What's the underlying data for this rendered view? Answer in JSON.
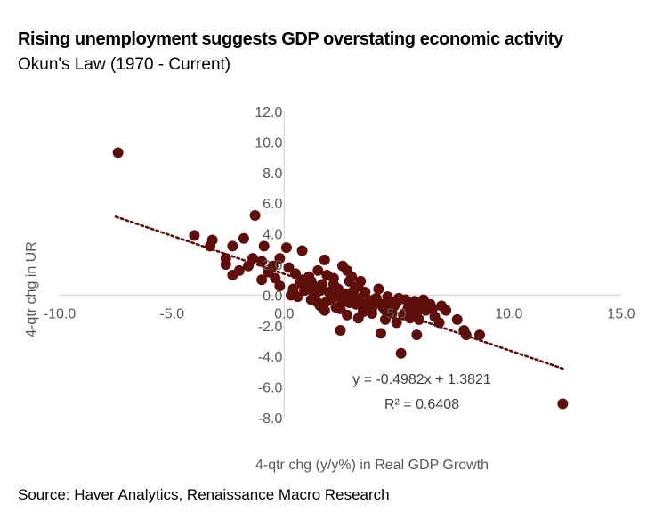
{
  "title": "Rising unemployment suggests GDP overstating economic activity",
  "subtitle": "Okun's Law (1970 - Current)",
  "source": "Source: Haver Analytics, Renaissance Macro Research",
  "colors": {
    "points": "#5e0f0c",
    "axis": "#d9d9d9",
    "text": "#595959",
    "trend": "#5e0f0c"
  },
  "chart_data": {
    "type": "scatter",
    "xlabel": "4-qtr chg (y/y%) in Real GDP Growth",
    "ylabel": "4-qtr chg in UR",
    "xlim": [
      -10,
      15
    ],
    "ylim": [
      -8,
      12
    ],
    "xticks": [
      "-10.0",
      "-5.0",
      "0.0",
      "5.0",
      "10.0",
      "15.0"
    ],
    "yticks": [
      "12.0",
      "10.0",
      "8.0",
      "6.0",
      "4.0",
      "2.0",
      "0.0",
      "-2.0",
      "-4.0",
      "-6.0",
      "-8.0"
    ],
    "trendline": {
      "slope": -0.4982,
      "intercept": 1.3821,
      "x_start": -7.5,
      "x_end": 12.4,
      "equation": "y = -0.4982x + 1.3821",
      "r2": "R² = 0.6408"
    },
    "points": [
      [
        -7.4,
        9.3
      ],
      [
        12.4,
        -7.1
      ],
      [
        -4.0,
        3.9
      ],
      [
        -3.2,
        3.6
      ],
      [
        -3.3,
        3.2
      ],
      [
        -2.6,
        2.4
      ],
      [
        -2.6,
        2.0
      ],
      [
        -2.3,
        3.2
      ],
      [
        -1.8,
        3.7
      ],
      [
        -1.3,
        5.2
      ],
      [
        -0.9,
        3.2
      ],
      [
        -1.0,
        2.2
      ],
      [
        -1.4,
        2.4
      ],
      [
        -2.0,
        1.6
      ],
      [
        -2.3,
        1.3
      ],
      [
        -0.7,
        1.5
      ],
      [
        -0.4,
        1.1
      ],
      [
        -0.2,
        2.4
      ],
      [
        0.1,
        3.1
      ],
      [
        0.2,
        1.8
      ],
      [
        0.5,
        1.4
      ],
      [
        0.8,
        1.0
      ],
      [
        0.8,
        2.9
      ],
      [
        1.1,
        1.2
      ],
      [
        1.3,
        0.6
      ],
      [
        1.5,
        1.6
      ],
      [
        1.8,
        2.3
      ],
      [
        1.6,
        0.3
      ],
      [
        1.9,
        1.3
      ],
      [
        2.2,
        0.7
      ],
      [
        2.6,
        1.9
      ],
      [
        2.8,
        1.6
      ],
      [
        2.9,
        0.9
      ],
      [
        3.1,
        0.3
      ],
      [
        3.3,
        0.6
      ],
      [
        0.4,
        0.4
      ],
      [
        0.6,
        -0.1
      ],
      [
        0.9,
        0.3
      ],
      [
        1.2,
        -0.3
      ],
      [
        1.5,
        -0.5
      ],
      [
        1.8,
        -1.0
      ],
      [
        2.1,
        -0.2
      ],
      [
        2.3,
        -0.8
      ],
      [
        2.6,
        -0.4
      ],
      [
        2.8,
        -1.3
      ],
      [
        3.0,
        -0.1
      ],
      [
        3.2,
        -0.6
      ],
      [
        3.5,
        -1.1
      ],
      [
        3.7,
        -0.3
      ],
      [
        3.9,
        -0.9
      ],
      [
        4.1,
        -0.2
      ],
      [
        4.3,
        -0.6
      ],
      [
        4.5,
        -1.0
      ],
      [
        4.7,
        -0.4
      ],
      [
        4.9,
        -0.7
      ],
      [
        5.1,
        -0.2
      ],
      [
        5.3,
        -1.3
      ],
      [
        5.5,
        -0.9
      ],
      [
        5.7,
        -0.6
      ],
      [
        5.9,
        -1.1
      ],
      [
        6.1,
        -0.8
      ],
      [
        6.3,
        -1.0
      ],
      [
        6.5,
        -0.6
      ],
      [
        6.7,
        -1.4
      ],
      [
        7.0,
        -0.7
      ],
      [
        7.2,
        -1.0
      ],
      [
        7.7,
        -1.6
      ],
      [
        8.0,
        -2.3
      ],
      [
        8.1,
        -2.6
      ],
      [
        8.7,
        -2.6
      ],
      [
        6.9,
        -1.8
      ],
      [
        5.9,
        -2.6
      ],
      [
        5.2,
        -3.8
      ],
      [
        4.3,
        -2.5
      ],
      [
        2.5,
        -2.3
      ],
      [
        1.2,
        0.9
      ],
      [
        1.4,
        0.1
      ],
      [
        1.7,
        0.7
      ],
      [
        2.0,
        0.2
      ],
      [
        2.4,
        0.4
      ],
      [
        2.7,
        0.1
      ],
      [
        3.4,
        -0.2
      ],
      [
        3.6,
        0.2
      ],
      [
        3.8,
        -0.5
      ],
      [
        4.0,
        -0.3
      ],
      [
        4.4,
        -0.8
      ],
      [
        4.6,
        -0.1
      ],
      [
        4.8,
        -1.2
      ],
      [
        5.0,
        -0.5
      ],
      [
        5.4,
        -0.3
      ],
      [
        5.6,
        -1.5
      ],
      [
        5.8,
        -0.4
      ],
      [
        6.2,
        -0.3
      ],
      [
        6.6,
        -0.9
      ],
      [
        2.2,
        1.1
      ],
      [
        1.0,
        0.5
      ],
      [
        0.3,
        0.0
      ],
      [
        3.0,
        1.2
      ],
      [
        3.4,
        0.9
      ],
      [
        4.2,
        0.4
      ],
      [
        1.6,
        -0.7
      ],
      [
        2.5,
        -0.9
      ],
      [
        3.3,
        -1.5
      ],
      [
        4.5,
        -1.6
      ],
      [
        5.0,
        -1.8
      ],
      [
        1.9,
        -0.4
      ],
      [
        2.9,
        -0.5
      ],
      [
        3.9,
        -1.2
      ],
      [
        4.8,
        -0.9
      ],
      [
        5.6,
        -1.0
      ],
      [
        6.0,
        -1.6
      ],
      [
        3.6,
        -0.8
      ],
      [
        2.4,
        -0.1
      ],
      [
        1.3,
        0.2
      ],
      [
        0.7,
        0.8
      ],
      [
        -0.2,
        0.6
      ],
      [
        -1.0,
        1.0
      ],
      [
        -1.6,
        1.9
      ],
      [
        -0.5,
        1.9
      ]
    ]
  }
}
